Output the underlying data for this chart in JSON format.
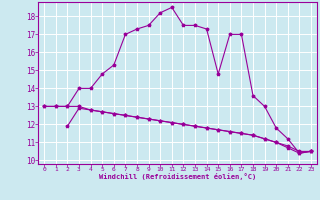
{
  "background_color": "#cce9f0",
  "grid_color": "#ffffff",
  "line_color": "#990099",
  "xlabel": "Windchill (Refroidissement éolien,°C)",
  "xlim": [
    -0.5,
    23.5
  ],
  "ylim": [
    9.8,
    18.8
  ],
  "yticks": [
    10,
    11,
    12,
    13,
    14,
    15,
    16,
    17,
    18
  ],
  "xticks": [
    0,
    1,
    2,
    3,
    4,
    5,
    6,
    7,
    8,
    9,
    10,
    11,
    12,
    13,
    14,
    15,
    16,
    17,
    18,
    19,
    20,
    21,
    22,
    23
  ],
  "line1_x": [
    0,
    1,
    2,
    3,
    4,
    5,
    6,
    7,
    8,
    9,
    10,
    11,
    12,
    13,
    14,
    15,
    16,
    17,
    18,
    19,
    20,
    21,
    22,
    23
  ],
  "line1_y": [
    13.0,
    13.0,
    13.0,
    14.0,
    14.0,
    14.8,
    15.3,
    17.0,
    17.3,
    17.5,
    18.2,
    18.5,
    17.5,
    17.5,
    17.3,
    14.8,
    17.0,
    17.0,
    13.6,
    13.0,
    11.8,
    11.2,
    10.4,
    10.5
  ],
  "line2_x": [
    0,
    1,
    2,
    3,
    4,
    5,
    6,
    7,
    8,
    9,
    10,
    11,
    12,
    13,
    14,
    15,
    16,
    17,
    18,
    19,
    20,
    21,
    22,
    23
  ],
  "line2_y": [
    13.0,
    13.0,
    13.0,
    13.0,
    12.8,
    12.7,
    12.6,
    12.5,
    12.4,
    12.3,
    12.2,
    12.1,
    12.0,
    11.9,
    11.8,
    11.7,
    11.6,
    11.5,
    11.4,
    11.2,
    11.0,
    10.8,
    10.5,
    10.5
  ],
  "line3_x": [
    2,
    3,
    4,
    5,
    6,
    7,
    8,
    9,
    10,
    11,
    12,
    13,
    14,
    15,
    16,
    17,
    18,
    19,
    20,
    21,
    22,
    23
  ],
  "line3_y": [
    11.9,
    12.9,
    12.8,
    12.7,
    12.6,
    12.5,
    12.4,
    12.3,
    12.2,
    12.1,
    12.0,
    11.9,
    11.8,
    11.7,
    11.6,
    11.5,
    11.4,
    11.2,
    11.0,
    10.7,
    10.4,
    10.5
  ]
}
